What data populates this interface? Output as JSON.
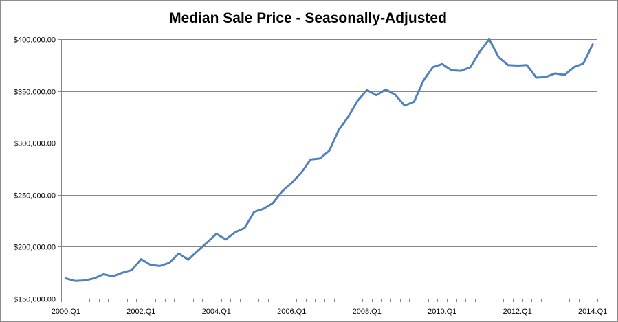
{
  "chart_data": {
    "type": "line",
    "title": "Median Sale Price - Seasonally-Adjusted",
    "xlabel": "",
    "ylabel": "",
    "ylim": [
      150000,
      400000
    ],
    "yticks": [
      150000,
      200000,
      250000,
      300000,
      350000,
      400000
    ],
    "ytick_labels": [
      "$150,000.00",
      "$200,000.00",
      "$250,000.00",
      "$300,000.00",
      "$350,000.00",
      "$400,000.00"
    ],
    "xtick_labels": [
      "2000.Q1",
      "2002.Q1",
      "2004.Q1",
      "2006.Q1",
      "2008.Q1",
      "2010.Q1",
      "2012.Q1",
      "2014.Q1"
    ],
    "grid": true,
    "legend": "none",
    "line_color": "#4f81bd",
    "categories": [
      "2000.Q1",
      "2000.Q2",
      "2000.Q3",
      "2000.Q4",
      "2001.Q1",
      "2001.Q2",
      "2001.Q3",
      "2001.Q4",
      "2002.Q1",
      "2002.Q2",
      "2002.Q3",
      "2002.Q4",
      "2003.Q1",
      "2003.Q2",
      "2003.Q3",
      "2003.Q4",
      "2004.Q1",
      "2004.Q2",
      "2004.Q3",
      "2004.Q4",
      "2005.Q1",
      "2005.Q2",
      "2005.Q3",
      "2005.Q4",
      "2006.Q1",
      "2006.Q2",
      "2006.Q3",
      "2006.Q4",
      "2007.Q1",
      "2007.Q2",
      "2007.Q3",
      "2007.Q4",
      "2008.Q1",
      "2008.Q2",
      "2008.Q3",
      "2008.Q4",
      "2009.Q1",
      "2009.Q2",
      "2009.Q3",
      "2009.Q4",
      "2010.Q1",
      "2010.Q2",
      "2010.Q3",
      "2010.Q4",
      "2011.Q1",
      "2011.Q2",
      "2011.Q3",
      "2011.Q4",
      "2012.Q1",
      "2012.Q2",
      "2012.Q3",
      "2012.Q4",
      "2013.Q1",
      "2013.Q2",
      "2013.Q3",
      "2013.Q4",
      "2014.Q1"
    ],
    "values": [
      169500,
      167000,
      167500,
      169500,
      173500,
      171500,
      175000,
      177500,
      188000,
      182500,
      181500,
      184500,
      193500,
      187500,
      196000,
      204000,
      212500,
      207000,
      214000,
      218000,
      233500,
      236500,
      242000,
      253500,
      261500,
      271000,
      284000,
      285000,
      292500,
      312500,
      325000,
      340500,
      351000,
      346000,
      351500,
      346500,
      336000,
      339500,
      360000,
      373000,
      376000,
      370000,
      369500,
      373000,
      388000,
      400000,
      382500,
      375000,
      374500,
      375000,
      363000,
      363500,
      367000,
      365500,
      373000,
      376500,
      395000
    ]
  }
}
